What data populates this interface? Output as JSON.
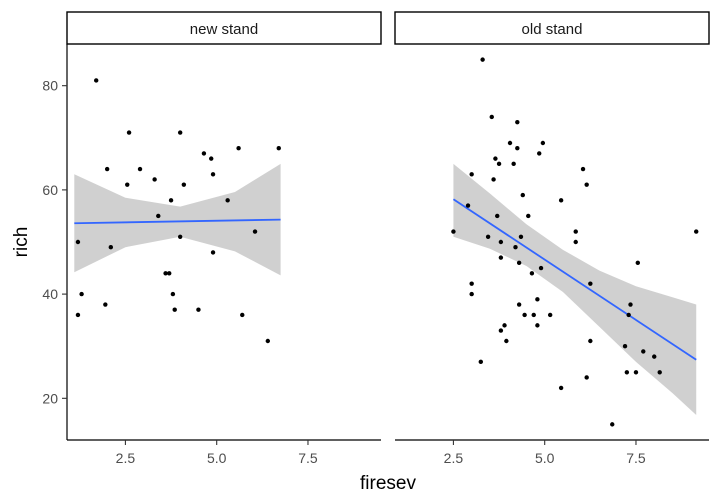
{
  "chart_data": {
    "type": "scatter",
    "xlabel": "firesev",
    "ylabel": "rich",
    "xlim": [
      0.9,
      9.5
    ],
    "ylim": [
      12,
      88
    ],
    "xticks": [
      2.5,
      5.0,
      7.5
    ],
    "xtick_labels": [
      "2.5",
      "5.0",
      "7.5"
    ],
    "yticks": [
      20,
      40,
      60,
      80
    ],
    "ytick_labels": [
      "20",
      "40",
      "60",
      "80"
    ],
    "grid": false,
    "colors": {
      "fit": "#3366FF",
      "band": "#c8c8c8",
      "points": "#000000"
    },
    "panels": [
      {
        "label": "new stand",
        "points": [
          [
            1.2,
            50
          ],
          [
            1.2,
            36
          ],
          [
            1.3,
            40
          ],
          [
            1.7,
            81
          ],
          [
            1.95,
            38
          ],
          [
            2.0,
            64
          ],
          [
            2.1,
            49
          ],
          [
            2.55,
            61
          ],
          [
            2.6,
            71
          ],
          [
            2.9,
            64
          ],
          [
            3.3,
            62
          ],
          [
            3.4,
            55
          ],
          [
            3.6,
            44
          ],
          [
            3.7,
            44
          ],
          [
            3.75,
            58
          ],
          [
            3.8,
            40
          ],
          [
            3.85,
            37
          ],
          [
            4.0,
            71
          ],
          [
            4.0,
            51
          ],
          [
            4.1,
            61
          ],
          [
            4.5,
            37
          ],
          [
            4.65,
            67
          ],
          [
            4.85,
            66
          ],
          [
            4.9,
            63
          ],
          [
            4.9,
            48
          ],
          [
            5.3,
            58
          ],
          [
            5.6,
            68
          ],
          [
            5.7,
            36
          ],
          [
            6.05,
            52
          ],
          [
            6.4,
            31
          ],
          [
            6.7,
            68
          ]
        ],
        "fit": {
          "x": [
            1.1,
            6.75
          ],
          "y": [
            53.6,
            54.3
          ]
        },
        "band": {
          "x": [
            1.1,
            2.5,
            4.0,
            5.5,
            6.75
          ],
          "lower": [
            44.2,
            49.0,
            51.0,
            48.2,
            43.6
          ],
          "upper": [
            63.0,
            58.5,
            56.8,
            59.6,
            65.0
          ]
        }
      },
      {
        "label": "old stand",
        "points": [
          [
            2.5,
            52
          ],
          [
            2.9,
            57
          ],
          [
            3.0,
            63
          ],
          [
            3.0,
            42
          ],
          [
            3.0,
            40
          ],
          [
            3.25,
            27
          ],
          [
            3.3,
            85
          ],
          [
            3.45,
            51
          ],
          [
            3.55,
            74
          ],
          [
            3.6,
            62
          ],
          [
            3.65,
            66
          ],
          [
            3.7,
            55
          ],
          [
            3.75,
            65
          ],
          [
            3.8,
            47
          ],
          [
            3.8,
            50
          ],
          [
            3.8,
            33
          ],
          [
            3.9,
            34
          ],
          [
            3.95,
            31
          ],
          [
            4.05,
            69
          ],
          [
            4.15,
            65
          ],
          [
            4.2,
            49
          ],
          [
            4.25,
            73
          ],
          [
            4.25,
            68
          ],
          [
            4.3,
            46
          ],
          [
            4.3,
            38
          ],
          [
            4.35,
            51
          ],
          [
            4.4,
            59
          ],
          [
            4.45,
            36
          ],
          [
            4.55,
            55
          ],
          [
            4.65,
            44
          ],
          [
            4.7,
            36
          ],
          [
            4.8,
            39
          ],
          [
            4.8,
            34
          ],
          [
            4.85,
            67
          ],
          [
            4.9,
            45
          ],
          [
            4.95,
            69
          ],
          [
            5.15,
            36
          ],
          [
            5.45,
            22
          ],
          [
            5.45,
            58
          ],
          [
            5.85,
            52
          ],
          [
            5.85,
            50
          ],
          [
            6.05,
            64
          ],
          [
            6.15,
            61
          ],
          [
            6.15,
            24
          ],
          [
            6.25,
            42
          ],
          [
            6.25,
            31
          ],
          [
            6.85,
            15
          ],
          [
            7.2,
            30
          ],
          [
            7.25,
            25
          ],
          [
            7.3,
            36
          ],
          [
            7.35,
            38
          ],
          [
            7.5,
            25
          ],
          [
            7.55,
            46
          ],
          [
            7.7,
            29
          ],
          [
            8.0,
            28
          ],
          [
            8.15,
            25
          ],
          [
            9.15,
            52
          ]
        ],
        "fit": {
          "x": [
            2.5,
            9.15
          ],
          "y": [
            58.2,
            27.4
          ]
        },
        "band": {
          "x": [
            2.5,
            3.5,
            4.5,
            5.5,
            6.5,
            7.5,
            8.5,
            9.15
          ],
          "lower": [
            51.0,
            48.7,
            45.4,
            40.4,
            33.7,
            27.0,
            21.0,
            16.8
          ],
          "upper": [
            65.0,
            59.3,
            53.4,
            48.5,
            44.5,
            41.5,
            39.4,
            38.0
          ]
        }
      }
    ]
  }
}
